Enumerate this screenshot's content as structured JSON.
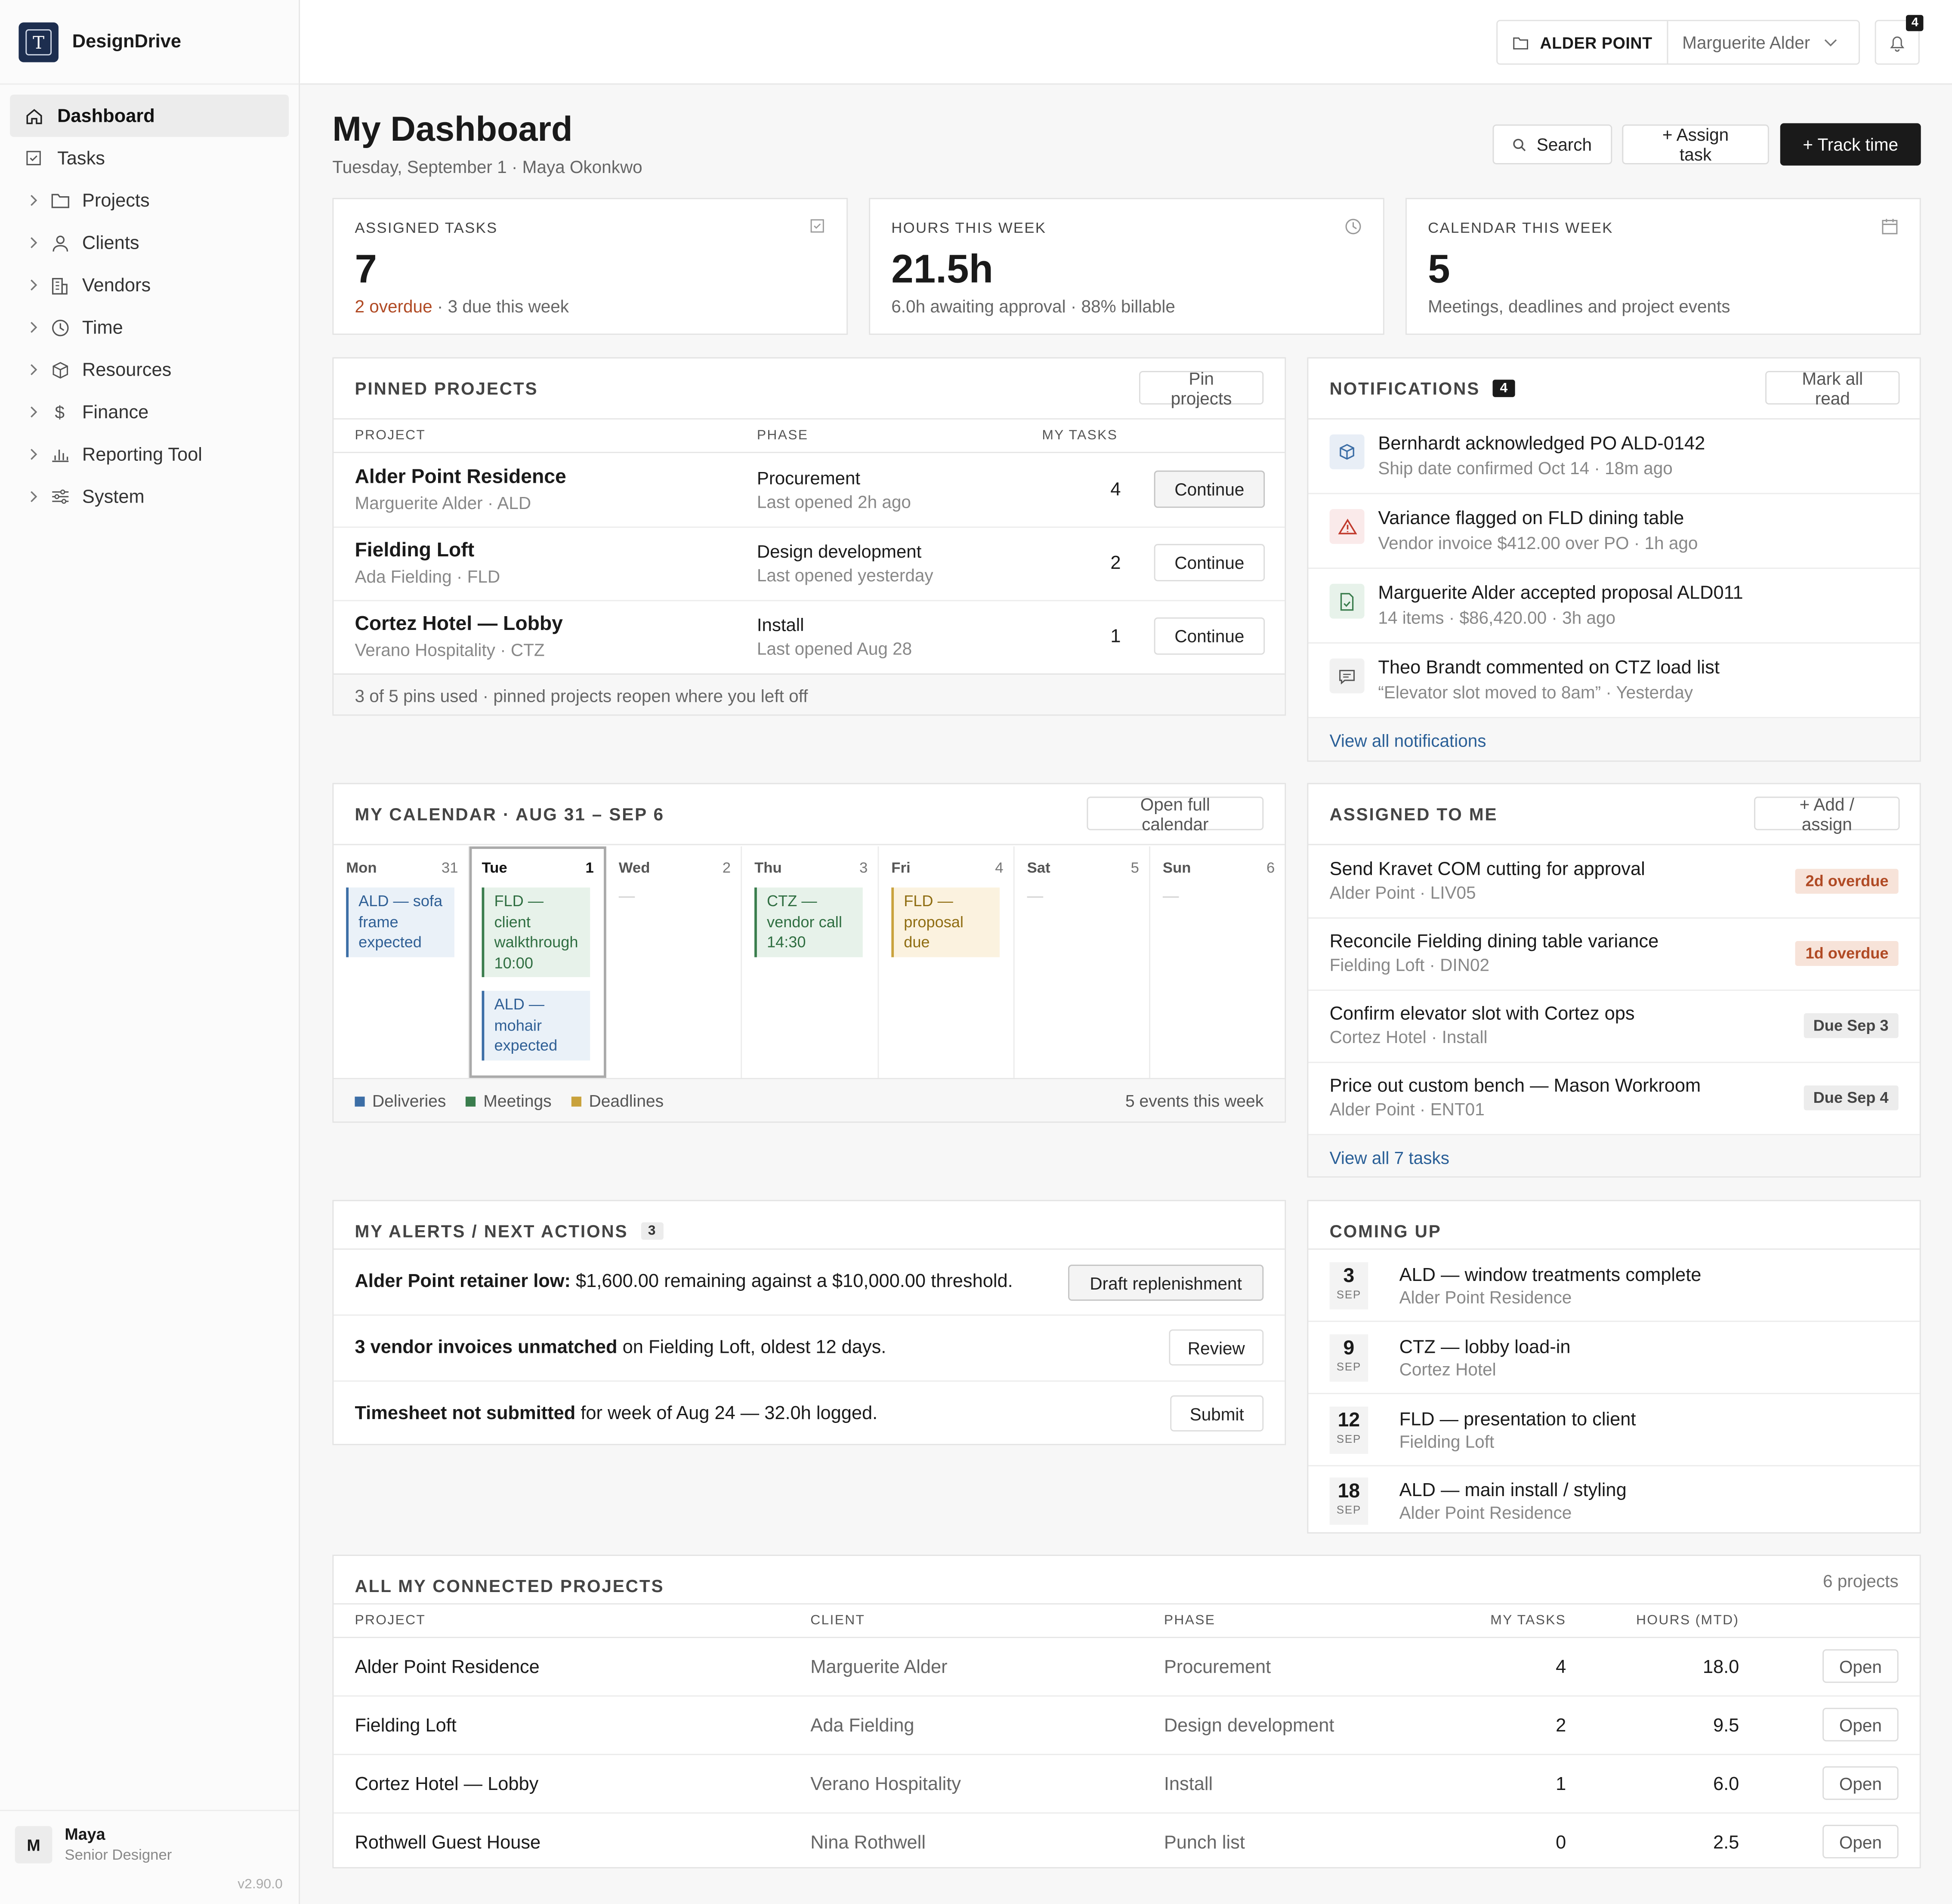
{
  "app": {
    "name": "DesignDrive",
    "logo_letter": "T"
  },
  "sidebar": {
    "items": [
      {
        "label": "Dashboard",
        "icon": "home-icon",
        "active": true
      },
      {
        "label": "Tasks",
        "icon": "checkbox-icon"
      },
      {
        "label": "Projects",
        "icon": "folder-icon"
      },
      {
        "label": "Clients",
        "icon": "person-icon"
      },
      {
        "label": "Vendors",
        "icon": "building-icon"
      },
      {
        "label": "Time",
        "icon": "clock-icon"
      },
      {
        "label": "Resources",
        "icon": "cube-icon"
      },
      {
        "label": "Finance",
        "icon": "dollar-icon"
      },
      {
        "label": "Reporting Tool",
        "icon": "bar-chart-icon"
      },
      {
        "label": "System",
        "icon": "sliders-icon"
      }
    ],
    "user": {
      "initial": "M",
      "name": "Maya",
      "role": "Senior Designer"
    },
    "version": "v2.90.0"
  },
  "topbar": {
    "project": "ALDER POINT",
    "client": "Marguerite Alder",
    "notif_count": "4"
  },
  "header": {
    "title": "My Dashboard",
    "subtitle": "Tuesday, September 1 · Maya Okonkwo",
    "search": "Search",
    "assign": "+ Assign task",
    "track": "+ Track time"
  },
  "stats": [
    {
      "label": "ASSIGNED TASKS",
      "value": "7",
      "foot_red": "2 overdue",
      "foot": " · 3 due this week",
      "icon": "checkbox-icon"
    },
    {
      "label": "HOURS THIS WEEK",
      "value": "21.5h",
      "foot_red": "",
      "foot": "6.0h awaiting approval · 88% billable",
      "icon": "clock-icon"
    },
    {
      "label": "CALENDAR THIS WEEK",
      "value": "5",
      "foot_red": "",
      "foot": "Meetings, deadlines and project events",
      "icon": "calendar-icon"
    }
  ],
  "pinned": {
    "title": "PINNED PROJECTS",
    "button": "Pin projects",
    "columns": [
      "PROJECT",
      "PHASE",
      "MY TASKS"
    ],
    "rows": [
      {
        "name": "Alder Point Residence",
        "sub": "Marguerite Alder · ALD",
        "phase": "Procurement",
        "opened": "Last opened 2h ago",
        "tasks": "4",
        "action": "Continue"
      },
      {
        "name": "Fielding Loft",
        "sub": "Ada Fielding · FLD",
        "phase": "Design development",
        "opened": "Last opened yesterday",
        "tasks": "2",
        "action": "Continue"
      },
      {
        "name": "Cortez Hotel — Lobby",
        "sub": "Verano Hospitality · CTZ",
        "phase": "Install",
        "opened": "Last opened Aug 28",
        "tasks": "1",
        "action": "Continue"
      }
    ],
    "footer": "3 of 5 pins used · pinned projects reopen where you left off"
  },
  "notifications": {
    "title": "NOTIFICATIONS",
    "count": "4",
    "button": "Mark all read",
    "items": [
      {
        "title": "Bernhardt acknowledged PO ALD-0142",
        "sub": "Ship date confirmed Oct 14 · 18m ago",
        "icon": "cube-icon"
      },
      {
        "title": "Variance flagged on FLD dining table",
        "sub": "Vendor invoice $412.00 over PO · 1h ago",
        "icon": "warning-icon"
      },
      {
        "title": "Marguerite Alder accepted proposal ALD011",
        "sub": "14 items · $86,420.00 · 3h ago",
        "icon": "document-check-icon"
      },
      {
        "title": "Theo Brandt commented on CTZ load list",
        "sub": "“Elevator slot moved to 8am” · Yesterday",
        "icon": "comment-icon"
      }
    ],
    "link": "View all notifications"
  },
  "calendar": {
    "title": "MY CALENDAR · AUG 31 – SEP 6",
    "button": "Open full calendar",
    "days": [
      {
        "day": "Mon",
        "num": "31",
        "events": [
          {
            "text": "ALD — sofa frame expected",
            "kind": "blue"
          }
        ]
      },
      {
        "day": "Tue",
        "num": "1",
        "today": true,
        "events": [
          {
            "text": "FLD — client walkthrough 10:00",
            "kind": "green"
          },
          {
            "text": "ALD — mohair expected",
            "kind": "blue"
          }
        ]
      },
      {
        "day": "Wed",
        "num": "2",
        "events": []
      },
      {
        "day": "Thu",
        "num": "3",
        "events": [
          {
            "text": "CTZ — vendor call 14:30",
            "kind": "green"
          }
        ]
      },
      {
        "day": "Fri",
        "num": "4",
        "events": [
          {
            "text": "FLD — proposal due",
            "kind": "yellow"
          }
        ]
      },
      {
        "day": "Sat",
        "num": "5",
        "events": []
      },
      {
        "day": "Sun",
        "num": "6",
        "events": []
      }
    ],
    "empty": "—",
    "legend": {
      "deliveries": "Deliveries",
      "meetings": "Meetings",
      "deadlines": "Deadlines"
    },
    "summary": "5 events this week",
    "colors": {
      "blue": "#3c6ea6",
      "green": "#3a7d4d",
      "yellow": "#c9a23c"
    }
  },
  "assigned": {
    "title": "ASSIGNED TO ME",
    "button": "+ Add / assign",
    "items": [
      {
        "title": "Send Kravet COM cutting for approval",
        "sub": "Alder Point · LIV05",
        "badge": "2d overdue",
        "kind": "red"
      },
      {
        "title": "Reconcile Fielding dining table variance",
        "sub": "Fielding Loft · DIN02",
        "badge": "1d overdue",
        "kind": "red"
      },
      {
        "title": "Confirm elevator slot with Cortez ops",
        "sub": "Cortez Hotel · Install",
        "badge": "Due Sep 3",
        "kind": "grey"
      },
      {
        "title": "Price out custom bench — Mason Workroom",
        "sub": "Alder Point · ENT01",
        "badge": "Due Sep 4",
        "kind": "grey"
      }
    ],
    "link": "View all 7 tasks"
  },
  "alerts": {
    "title": "MY ALERTS / NEXT ACTIONS",
    "count": "3",
    "items": [
      {
        "bold": "Alder Point retainer low:",
        "text": " $1,600.00 remaining against a $10,000.00 threshold.",
        "action": "Draft replenishment"
      },
      {
        "bold": "3 vendor invoices unmatched",
        "text": " on Fielding Loft, oldest 12 days.",
        "action": "Review"
      },
      {
        "bold": "Timesheet not submitted",
        "text": " for week of Aug 24 — 32.0h logged.",
        "action": "Submit"
      }
    ]
  },
  "coming_up": {
    "title": "COMING UP",
    "items": [
      {
        "day": "3",
        "month": "SEP",
        "title": "ALD — window treatments complete",
        "sub": "Alder Point Residence"
      },
      {
        "day": "9",
        "month": "SEP",
        "title": "CTZ — lobby load-in",
        "sub": "Cortez Hotel"
      },
      {
        "day": "12",
        "month": "SEP",
        "title": "FLD — presentation to client",
        "sub": "Fielding Loft"
      },
      {
        "day": "18",
        "month": "SEP",
        "title": "ALD — main install / styling",
        "sub": "Alder Point Residence"
      }
    ]
  },
  "connected": {
    "title": "ALL MY CONNECTED PROJECTS",
    "count": "6 projects",
    "columns": [
      "PROJECT",
      "CLIENT",
      "PHASE",
      "MY TASKS",
      "HOURS (MTD)"
    ],
    "rows": [
      {
        "project": "Alder Point Residence",
        "client": "Marguerite Alder",
        "phase": "Procurement",
        "tasks": "4",
        "hours": "18.0",
        "action": "Open"
      },
      {
        "project": "Fielding Loft",
        "client": "Ada Fielding",
        "phase": "Design development",
        "tasks": "2",
        "hours": "9.5",
        "action": "Open"
      },
      {
        "project": "Cortez Hotel — Lobby",
        "client": "Verano Hospitality",
        "phase": "Install",
        "tasks": "1",
        "hours": "6.0",
        "action": "Open"
      },
      {
        "project": "Rothwell Guest House",
        "client": "Nina Rothwell",
        "phase": "Punch list",
        "tasks": "0",
        "hours": "2.5",
        "action": "Open"
      }
    ]
  }
}
